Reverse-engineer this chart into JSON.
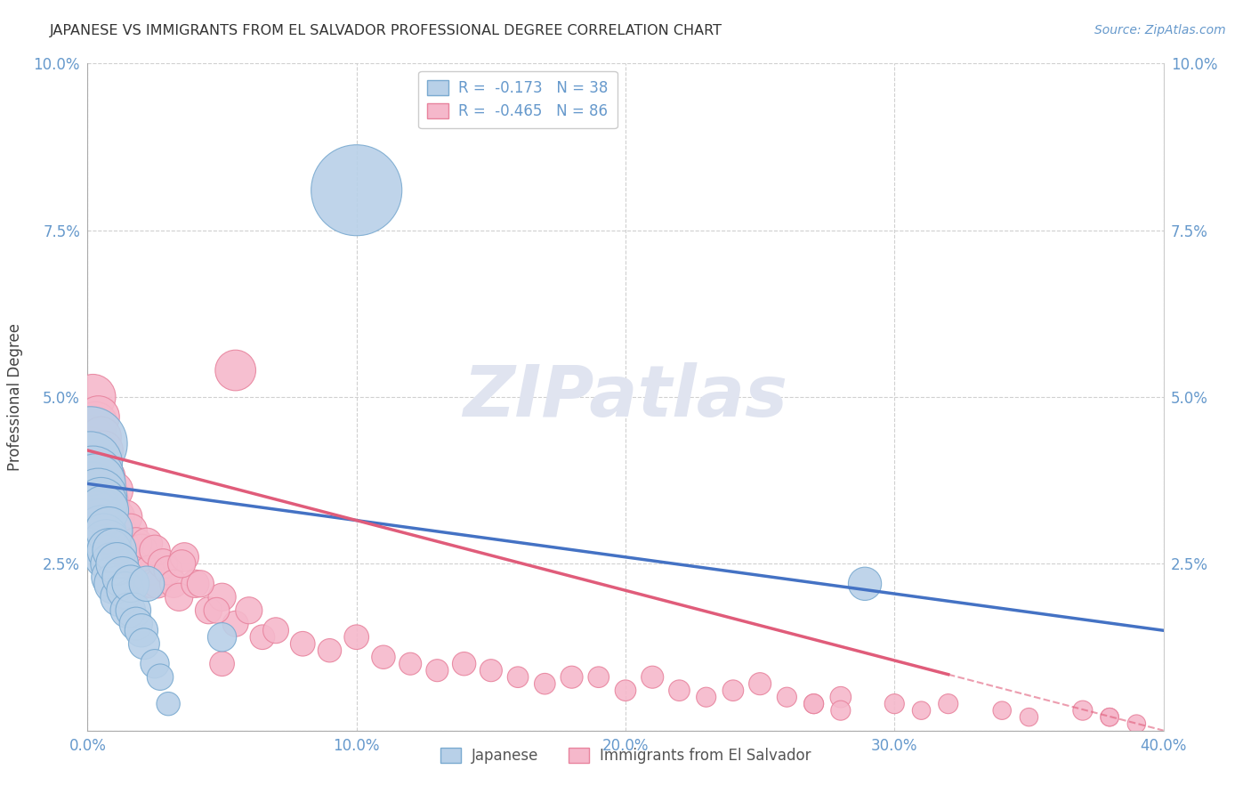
{
  "title": "JAPANESE VS IMMIGRANTS FROM EL SALVADOR PROFESSIONAL DEGREE CORRELATION CHART",
  "source": "Source: ZipAtlas.com",
  "ylabel": "Professional Degree",
  "xlim": [
    0.0,
    0.4
  ],
  "ylim": [
    0.0,
    0.1
  ],
  "xticks": [
    0.0,
    0.1,
    0.2,
    0.3,
    0.4
  ],
  "xtick_labels": [
    "0.0%",
    "10.0%",
    "20.0%",
    "30.0%",
    "40.0%"
  ],
  "yticks": [
    0.0,
    0.025,
    0.05,
    0.075,
    0.1
  ],
  "ytick_labels_left": [
    "",
    "2.5%",
    "5.0%",
    "7.5%",
    "10.0%"
  ],
  "ytick_labels_right": [
    "",
    "2.5%",
    "5.0%",
    "7.5%",
    "10.0%"
  ],
  "series1_name": "Japanese",
  "series1_color": "#b8d0e8",
  "series1_edge_color": "#7aaad0",
  "series1_line_color": "#4472c4",
  "series1_R": -0.173,
  "series1_N": 38,
  "series2_name": "Immigrants from El Salvador",
  "series2_color": "#f5b8cb",
  "series2_edge_color": "#e8849e",
  "series2_line_color": "#e05c7a",
  "series2_R": -0.465,
  "series2_N": 86,
  "background_color": "#ffffff",
  "grid_color": "#d0d0d0",
  "title_color": "#333333",
  "axis_tick_color": "#6699cc",
  "watermark_color": "#e0e4f0",
  "japanese_x": [
    0.001,
    0.001,
    0.001,
    0.002,
    0.002,
    0.003,
    0.003,
    0.004,
    0.004,
    0.005,
    0.005,
    0.006,
    0.006,
    0.007,
    0.007,
    0.008,
    0.008,
    0.009,
    0.009,
    0.01,
    0.01,
    0.011,
    0.012,
    0.013,
    0.014,
    0.015,
    0.016,
    0.017,
    0.018,
    0.02,
    0.021,
    0.022,
    0.025,
    0.027,
    0.03,
    0.289,
    0.05,
    0.1
  ],
  "japanese_y": [
    0.043,
    0.04,
    0.036,
    0.038,
    0.033,
    0.037,
    0.032,
    0.035,
    0.031,
    0.034,
    0.03,
    0.033,
    0.029,
    0.028,
    0.026,
    0.03,
    0.027,
    0.025,
    0.023,
    0.027,
    0.022,
    0.025,
    0.02,
    0.023,
    0.021,
    0.018,
    0.022,
    0.018,
    0.016,
    0.015,
    0.013,
    0.022,
    0.01,
    0.008,
    0.004,
    0.022,
    0.014,
    0.081
  ],
  "japanese_sizes": [
    200,
    150,
    120,
    140,
    110,
    130,
    100,
    120,
    90,
    100,
    90,
    90,
    80,
    85,
    70,
    80,
    70,
    65,
    60,
    70,
    60,
    65,
    55,
    60,
    50,
    45,
    50,
    45,
    40,
    40,
    35,
    45,
    30,
    25,
    20,
    40,
    30,
    300
  ],
  "salvador_x": [
    0.001,
    0.001,
    0.002,
    0.002,
    0.003,
    0.003,
    0.004,
    0.004,
    0.005,
    0.005,
    0.006,
    0.006,
    0.007,
    0.007,
    0.008,
    0.008,
    0.009,
    0.009,
    0.01,
    0.01,
    0.011,
    0.012,
    0.013,
    0.014,
    0.015,
    0.015,
    0.016,
    0.017,
    0.018,
    0.019,
    0.02,
    0.021,
    0.022,
    0.023,
    0.024,
    0.025,
    0.026,
    0.028,
    0.03,
    0.032,
    0.034,
    0.036,
    0.04,
    0.045,
    0.05,
    0.055,
    0.06,
    0.065,
    0.07,
    0.08,
    0.09,
    0.1,
    0.11,
    0.12,
    0.13,
    0.14,
    0.15,
    0.16,
    0.17,
    0.18,
    0.2,
    0.21,
    0.22,
    0.23,
    0.24,
    0.25,
    0.26,
    0.27,
    0.28,
    0.3,
    0.31,
    0.32,
    0.34,
    0.35,
    0.37,
    0.38,
    0.39,
    0.035,
    0.042,
    0.048,
    0.055,
    0.19,
    0.28,
    0.05,
    0.27,
    0.38
  ],
  "salvador_y": [
    0.042,
    0.038,
    0.05,
    0.044,
    0.046,
    0.04,
    0.047,
    0.038,
    0.044,
    0.036,
    0.042,
    0.034,
    0.038,
    0.032,
    0.036,
    0.03,
    0.034,
    0.028,
    0.036,
    0.03,
    0.032,
    0.03,
    0.028,
    0.032,
    0.028,
    0.026,
    0.03,
    0.025,
    0.028,
    0.024,
    0.027,
    0.022,
    0.028,
    0.024,
    0.022,
    0.027,
    0.022,
    0.025,
    0.024,
    0.022,
    0.02,
    0.026,
    0.022,
    0.018,
    0.02,
    0.016,
    0.018,
    0.014,
    0.015,
    0.013,
    0.012,
    0.014,
    0.011,
    0.01,
    0.009,
    0.01,
    0.009,
    0.008,
    0.007,
    0.008,
    0.006,
    0.008,
    0.006,
    0.005,
    0.006,
    0.007,
    0.005,
    0.004,
    0.005,
    0.004,
    0.003,
    0.004,
    0.003,
    0.002,
    0.003,
    0.002,
    0.001,
    0.025,
    0.022,
    0.018,
    0.054,
    0.008,
    0.003,
    0.01,
    0.004,
    0.002
  ],
  "salvador_sizes": [
    80,
    70,
    75,
    65,
    70,
    60,
    65,
    55,
    60,
    50,
    55,
    48,
    52,
    45,
    48,
    42,
    46,
    40,
    50,
    42,
    45,
    40,
    38,
    42,
    38,
    35,
    40,
    35,
    38,
    33,
    38,
    32,
    36,
    32,
    30,
    34,
    30,
    32,
    30,
    28,
    28,
    30,
    28,
    26,
    28,
    24,
    26,
    22,
    24,
    22,
    20,
    22,
    20,
    18,
    18,
    20,
    18,
    16,
    16,
    18,
    16,
    18,
    16,
    14,
    16,
    18,
    14,
    14,
    16,
    14,
    12,
    14,
    12,
    12,
    14,
    12,
    12,
    28,
    26,
    24,
    60,
    16,
    14,
    22,
    14,
    12
  ]
}
